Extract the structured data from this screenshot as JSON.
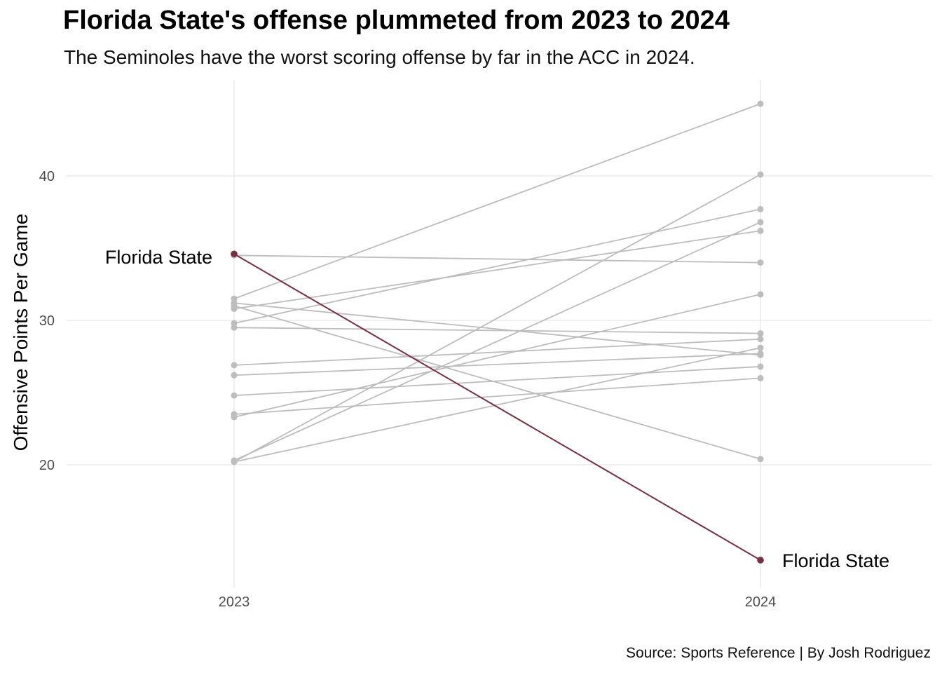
{
  "chart_data": {
    "type": "line",
    "title": "Florida State's offense plummeted from 2023 to 2024",
    "subtitle": "The Seminoles have the worst scoring offense by far in the ACC in 2024.",
    "caption": "Source: Sports Reference | By Josh Rodriguez",
    "ylabel": "Offensive Points Per Game",
    "xlabel": "",
    "x": [
      "2023",
      "2024"
    ],
    "ylim": [
      13,
      46
    ],
    "yticks": [
      20,
      30,
      40
    ],
    "grid": true,
    "highlight": {
      "label": "Florida State",
      "values": [
        34.6,
        13.4
      ],
      "color": "#782F40"
    },
    "series_color": "#bdbdbd",
    "series": [
      {
        "values": [
          31.5,
          45.0
        ]
      },
      {
        "values": [
          20.2,
          40.1
        ]
      },
      {
        "values": [
          29.8,
          37.7
        ]
      },
      {
        "values": [
          20.3,
          36.8
        ]
      },
      {
        "values": [
          30.8,
          36.2
        ]
      },
      {
        "values": [
          34.5,
          34.0
        ]
      },
      {
        "values": [
          23.3,
          31.8
        ]
      },
      {
        "values": [
          29.5,
          29.1
        ]
      },
      {
        "values": [
          26.9,
          28.7
        ]
      },
      {
        "values": [
          20.2,
          28.1
        ]
      },
      {
        "values": [
          26.2,
          27.7
        ]
      },
      {
        "values": [
          31.2,
          27.6
        ]
      },
      {
        "values": [
          24.8,
          26.8
        ]
      },
      {
        "values": [
          23.5,
          26.0
        ]
      },
      {
        "values": [
          31.0,
          20.4
        ]
      }
    ]
  }
}
